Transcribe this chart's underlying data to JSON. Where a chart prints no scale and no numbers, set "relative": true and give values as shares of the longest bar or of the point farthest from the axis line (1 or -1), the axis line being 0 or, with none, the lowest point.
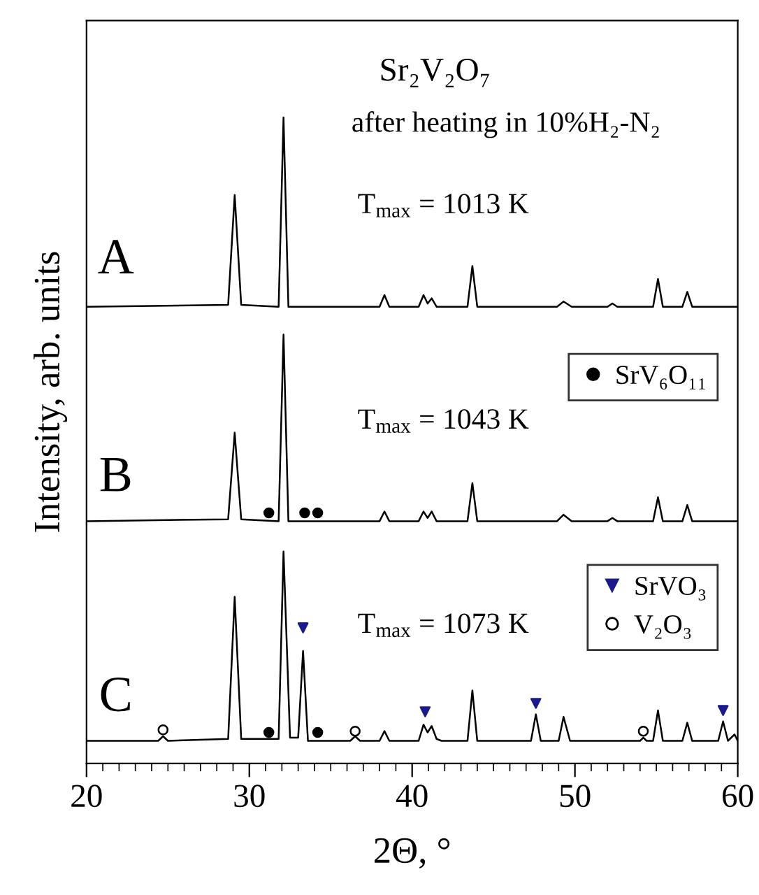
{
  "chart_data": {
    "type": "line",
    "relative": true,
    "xlabel": "2Θ, °",
    "ylabel": "Intensity, arb. units",
    "xlim": [
      20,
      60
    ],
    "xticks": [
      20,
      30,
      40,
      50,
      60
    ],
    "tick_labels": "x",
    "grid": false,
    "legend": "right",
    "line_style": "solid",
    "series": [
      {
        "color": "#000000",
        "x": [
          20,
          28.7,
          29.1,
          29.5,
          31.8,
          32.1,
          32.4,
          38.0,
          38.3,
          38.6,
          40.4,
          40.7,
          40.95,
          41.2,
          41.5,
          43.4,
          43.7,
          44.0,
          48.9,
          49.3,
          49.8,
          52.0,
          52.3,
          52.6,
          54.8,
          55.1,
          55.4,
          56.6,
          56.9,
          57.2,
          60
        ],
        "values": [
          0.707,
          0.71,
          0.88,
          0.71,
          0.707,
          1.0,
          0.707,
          0.707,
          0.725,
          0.707,
          0.707,
          0.725,
          0.712,
          0.72,
          0.707,
          0.707,
          0.77,
          0.707,
          0.707,
          0.715,
          0.707,
          0.707,
          0.712,
          0.707,
          0.707,
          0.75,
          0.707,
          0.707,
          0.73,
          0.707,
          0.707
        ]
      },
      {
        "color": "#000000",
        "x": [
          20,
          28.7,
          29.1,
          29.5,
          31.8,
          32.1,
          32.4,
          38.0,
          38.3,
          38.6,
          40.4,
          40.7,
          40.95,
          41.2,
          41.5,
          43.4,
          43.7,
          44.0,
          48.9,
          49.3,
          49.8,
          52.0,
          52.3,
          52.6,
          54.8,
          55.1,
          55.4,
          56.6,
          56.9,
          57.2,
          60
        ],
        "values": [
          0.375,
          0.378,
          0.512,
          0.378,
          0.375,
          0.664,
          0.375,
          0.375,
          0.39,
          0.375,
          0.375,
          0.39,
          0.38,
          0.39,
          0.375,
          0.375,
          0.434,
          0.375,
          0.375,
          0.385,
          0.375,
          0.375,
          0.38,
          0.375,
          0.375,
          0.412,
          0.375,
          0.375,
          0.4,
          0.375,
          0.375
        ]
      },
      {
        "color": "#000000",
        "x": [
          20,
          24.4,
          24.7,
          25.0,
          28.7,
          29.1,
          29.5,
          31.8,
          32.1,
          32.5,
          33.0,
          33.3,
          33.6,
          36.2,
          36.5,
          36.8,
          38.0,
          38.3,
          38.6,
          40.4,
          40.7,
          40.95,
          41.2,
          41.5,
          41.8,
          43.4,
          43.7,
          44.0,
          47.3,
          47.6,
          47.9,
          49.0,
          49.3,
          49.7,
          54.0,
          54.2,
          54.4,
          54.8,
          55.1,
          55.4,
          56.6,
          56.9,
          57.2,
          58.8,
          59.1,
          59.4,
          59.8,
          60
        ],
        "values": [
          0.035,
          0.035,
          0.042,
          0.035,
          0.038,
          0.258,
          0.038,
          0.038,
          0.328,
          0.04,
          0.04,
          0.174,
          0.035,
          0.035,
          0.042,
          0.035,
          0.035,
          0.05,
          0.035,
          0.035,
          0.06,
          0.048,
          0.058,
          0.038,
          0.035,
          0.035,
          0.113,
          0.035,
          0.035,
          0.076,
          0.035,
          0.035,
          0.072,
          0.035,
          0.035,
          0.04,
          0.035,
          0.035,
          0.082,
          0.035,
          0.035,
          0.063,
          0.035,
          0.035,
          0.065,
          0.035,
          0.045,
          0.035
        ]
      },
      {
        "type": "scatter",
        "name": "SrV₆O₁₁",
        "marker": "circle",
        "color": "#000000",
        "x": [
          31.2,
          33.4,
          34.2,
          31.2,
          34.2
        ],
        "values": [
          0.388,
          0.388,
          0.388,
          0.048,
          0.048
        ]
      },
      {
        "type": "scatter",
        "name": "SrVO₃",
        "marker": "triangle",
        "color": "#1a1a8c",
        "x": [
          33.3,
          40.8,
          47.6,
          59.1
        ],
        "values": [
          0.21,
          0.08,
          0.093,
          0.082
        ]
      },
      {
        "type": "scatter",
        "name": "V₂O₃",
        "marker": "circle",
        "color": "#ffffff",
        "x": [
          24.7,
          36.5,
          54.2
        ],
        "values": [
          0.052,
          0.05,
          0.05
        ]
      }
    ],
    "annotations": [
      "Sr₂V₂O₇",
      "after heating in 10%H₂-N₂",
      "T$_{max}$ = 1013 K",
      "A",
      "T$_{max}$ = 1043 K",
      "B",
      "T$_{max}$ = 1073 K",
      "C"
    ]
  }
}
